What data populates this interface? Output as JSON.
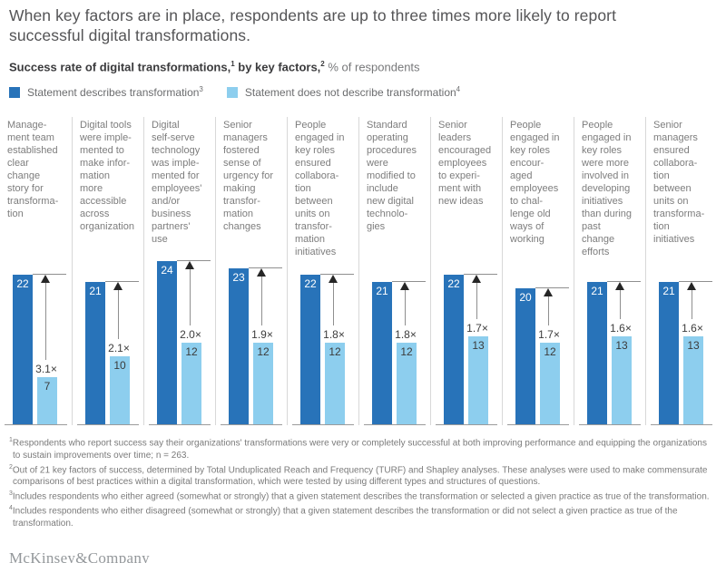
{
  "title": "When key factors are in place, respondents are up to three times more likely to report\nsuccessful digital transformations.",
  "subtitle": {
    "b1": "Success rate of digital transformations,",
    "s1": "1",
    "b2": " by key factors,",
    "s2": "2",
    "rest": " % of respondents"
  },
  "legend": [
    {
      "label": "Statement describes transformation",
      "sup": "3",
      "color": "#2873b9"
    },
    {
      "label": "Statement does not describe transformation",
      "sup": "4",
      "color": "#8dceee"
    }
  ],
  "columns": [
    {
      "label": "Manage-\nment team\nestablished\nclear\nchange\nstory for\ntransforma-\ntion",
      "dark": 22,
      "light": 7,
      "multiplier": "3.1×"
    },
    {
      "label": "Digital tools\nwere imple-\nmented to\nmake infor-\nmation\nmore\naccessible\nacross\norganization",
      "dark": 21,
      "light": 10,
      "multiplier": "2.1×"
    },
    {
      "label": "Digital\nself-serve\ntechnology\nwas imple-\nmented for\nemployees'\nand/or\nbusiness\npartners'\nuse",
      "dark": 24,
      "light": 12,
      "multiplier": "2.0×"
    },
    {
      "label": "Senior\nmanagers\nfostered\nsense of\nurgency for\nmaking\ntransfor-\nmation\nchanges",
      "dark": 23,
      "light": 12,
      "multiplier": "1.9×"
    },
    {
      "label": "People\nengaged in\nkey roles\nensured\ncollabora-\ntion\nbetween\nunits on\ntransfor-\nmation\ninitiatives",
      "dark": 22,
      "light": 12,
      "multiplier": "1.8×"
    },
    {
      "label": "Standard\noperating\nprocedures\nwere\nmodified to\ninclude\nnew digital\ntechnolo-\ngies",
      "dark": 21,
      "light": 12,
      "multiplier": "1.8×"
    },
    {
      "label": "Senior\nleaders\nencouraged\nemployees\nto experi-\nment with\nnew ideas",
      "dark": 22,
      "light": 13,
      "multiplier": "1.7×"
    },
    {
      "label": "People\nengaged in\nkey roles\nencour-\naged\nemployees\nto chal-\nlenge old\nways of\nworking",
      "dark": 20,
      "light": 12,
      "multiplier": "1.7×"
    },
    {
      "label": "People\nengaged in\nkey roles\nwere more\ninvolved in\ndeveloping\ninitiatives\nthan during\npast\nchange\nefforts",
      "dark": 21,
      "light": 13,
      "multiplier": "1.6×"
    },
    {
      "label": "Senior\nmanagers\nensured\ncollabora-\ntion\nbetween\nunits on\ntransforma-\ntion\ninitiatives",
      "dark": 21,
      "light": 13,
      "multiplier": "1.6×"
    }
  ],
  "footnotes": [
    {
      "sup": "1",
      "text": "Respondents who report success say their organizations' transformations were very or completely successful at both improving performance and equipping the organizations to sustain improvements over time; n = 263."
    },
    {
      "sup": "2",
      "text": "Out of 21 key factors of success, determined by Total Unduplicated Reach and Frequency (TURF) and Shapley analyses. These analyses were used to make commensurate comparisons of best practices within a digital transformation, which were tested by using different types and structures of questions."
    },
    {
      "sup": "3",
      "text": "Includes respondents who either agreed (somewhat or strongly) that a given statement describes the transformation or selected a given practice as true of the transformation."
    },
    {
      "sup": "4",
      "text": "Includes respondents who either disagreed (somewhat or strongly) that a given statement describes the transformation or did not select a given practice as true of the transformation."
    }
  ],
  "logo": "McKinsey&Company",
  "chart_data": {
    "type": "bar",
    "title": "Success rate of digital transformations, by key factors, % of respondents",
    "ylabel": "% of respondents",
    "ylim": [
      0,
      25
    ],
    "grid": false,
    "legend_position": "top",
    "categories": [
      "Management team established clear change story for transformation",
      "Digital tools were implemented to make information more accessible across organization",
      "Digital self-serve technology was implemented for employees' and/or business partners' use",
      "Senior managers fostered sense of urgency for making transformation changes",
      "People engaged in key roles ensured collaboration between units on transformation initiatives",
      "Standard operating procedures were modified to include new digital technologies",
      "Senior leaders encouraged employees to experiment with new ideas",
      "People engaged in key roles encouraged employees to challenge old ways of working",
      "People engaged in key roles were more involved in developing initiatives than during past change efforts",
      "Senior managers ensured collaboration between units on transformation initiatives"
    ],
    "series": [
      {
        "name": "Statement describes transformation",
        "color": "#2873b9",
        "values": [
          22,
          21,
          24,
          23,
          22,
          21,
          22,
          20,
          21,
          21
        ]
      },
      {
        "name": "Statement does not describe transformation",
        "color": "#8dceee",
        "values": [
          7,
          10,
          12,
          12,
          12,
          12,
          13,
          12,
          13,
          13
        ]
      }
    ],
    "multipliers": [
      "3.1×",
      "2.1×",
      "2.0×",
      "1.9×",
      "1.8×",
      "1.8×",
      "1.7×",
      "1.7×",
      "1.6×",
      "1.6×"
    ]
  }
}
